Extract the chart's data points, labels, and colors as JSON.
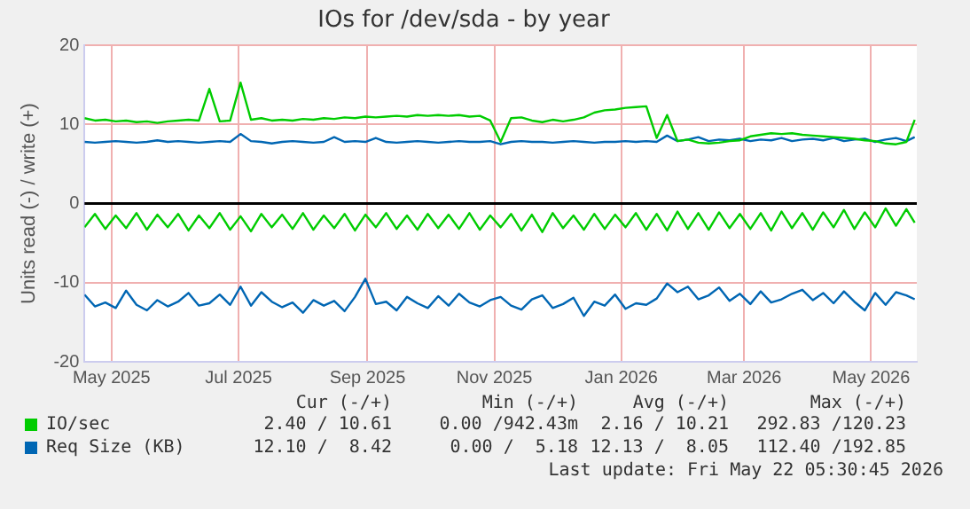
{
  "chart_data": {
    "type": "line",
    "title": "IOs for /dev/sda - by year",
    "ylabel": "Units read (-) / write (+)",
    "x": [
      "2025-04-18",
      "2025-04-23",
      "2025-04-28",
      "2025-05-03",
      "2025-05-08",
      "2025-05-13",
      "2025-05-18",
      "2025-05-23",
      "2025-05-28",
      "2025-06-02",
      "2025-06-07",
      "2025-06-12",
      "2025-06-17",
      "2025-06-22",
      "2025-06-27",
      "2025-07-02",
      "2025-07-07",
      "2025-07-12",
      "2025-07-17",
      "2025-07-22",
      "2025-07-27",
      "2025-08-01",
      "2025-08-06",
      "2025-08-11",
      "2025-08-16",
      "2025-08-21",
      "2025-08-26",
      "2025-08-31",
      "2025-09-05",
      "2025-09-10",
      "2025-09-15",
      "2025-09-20",
      "2025-09-25",
      "2025-09-30",
      "2025-10-05",
      "2025-10-10",
      "2025-10-15",
      "2025-10-20",
      "2025-10-25",
      "2025-10-30",
      "2025-11-04",
      "2025-11-09",
      "2025-11-14",
      "2025-11-19",
      "2025-11-24",
      "2025-11-29",
      "2025-12-04",
      "2025-12-09",
      "2025-12-14",
      "2025-12-19",
      "2025-12-24",
      "2025-12-29",
      "2026-01-03",
      "2026-01-08",
      "2026-01-13",
      "2026-01-18",
      "2026-01-23",
      "2026-01-28",
      "2026-02-02",
      "2026-02-07",
      "2026-02-12",
      "2026-02-17",
      "2026-02-22",
      "2026-02-27",
      "2026-03-04",
      "2026-03-09",
      "2026-03-14",
      "2026-03-19",
      "2026-03-24",
      "2026-03-29",
      "2026-04-03",
      "2026-04-08",
      "2026-04-13",
      "2026-04-18",
      "2026-04-23",
      "2026-04-28",
      "2026-05-03",
      "2026-05-08",
      "2026-05-13",
      "2026-05-18",
      "2026-05-22"
    ],
    "series": [
      {
        "name": "IO/sec",
        "color": "#00cc00",
        "values": [
          10.8,
          10.5,
          10.6,
          10.4,
          10.5,
          10.3,
          10.4,
          10.2,
          10.4,
          10.5,
          10.6,
          10.5,
          14.5,
          10.4,
          10.5,
          15.3,
          10.6,
          10.8,
          10.5,
          10.6,
          10.5,
          10.7,
          10.6,
          10.8,
          10.7,
          10.9,
          10.8,
          11,
          10.9,
          11,
          11.1,
          11,
          11.2,
          11.1,
          11.2,
          11.1,
          11.2,
          11,
          11.1,
          10.5,
          7.8,
          10.8,
          10.9,
          10.5,
          10.3,
          10.6,
          10.4,
          10.6,
          10.9,
          11.5,
          11.8,
          11.9,
          12.1,
          12.2,
          12.3,
          8.3,
          11.2,
          7.9,
          8.1,
          7.7,
          7.6,
          7.7,
          7.9,
          8,
          8.5,
          8.7,
          8.9,
          8.8,
          8.9,
          8.7,
          8.6,
          8.5,
          8.4,
          8.3,
          8.2,
          8,
          7.9,
          7.6,
          7.5,
          7.8,
          10.6
        ]
      },
      {
        "color": "#00cc00",
        "values": [
          -3,
          -1.3,
          -3.2,
          -1.5,
          -3.1,
          -1.2,
          -3.3,
          -1.4,
          -3,
          -1.3,
          -3.4,
          -1.5,
          -3.1,
          -1.2,
          -3.3,
          -1.6,
          -3.5,
          -1.3,
          -3,
          -1.4,
          -3.2,
          -1.2,
          -3.3,
          -1.5,
          -3.1,
          -1.3,
          -3.4,
          -1.4,
          -3,
          -1.2,
          -3.2,
          -1.5,
          -3.3,
          -1.3,
          -3.1,
          -1.4,
          -3.2,
          -1.2,
          -3.3,
          -1.5,
          -3,
          -1.3,
          -3.4,
          -1.4,
          -3.6,
          -1.2,
          -3.1,
          -1.5,
          -3.3,
          -1.3,
          -3.2,
          -1.4,
          -3,
          -1.2,
          -3.3,
          -1.3,
          -3.4,
          -1,
          -3.2,
          -1.2,
          -3.3,
          -1.1,
          -3.1,
          -1.3,
          -3.2,
          -1.2,
          -3.4,
          -1,
          -3.1,
          -1.2,
          -3.3,
          -1.1,
          -3,
          -0.8,
          -3.2,
          -1.1,
          -3,
          -0.6,
          -2.8,
          -0.7,
          -2.4
        ]
      },
      {
        "name": "Req Size (KB)",
        "color": "#0066b3",
        "values": [
          7.8,
          7.7,
          7.8,
          7.9,
          7.8,
          7.7,
          7.8,
          8,
          7.8,
          7.9,
          7.8,
          7.7,
          7.8,
          7.9,
          7.8,
          8.8,
          7.9,
          7.8,
          7.6,
          7.8,
          7.9,
          7.8,
          7.7,
          7.8,
          8.4,
          7.8,
          7.9,
          7.8,
          8.3,
          7.8,
          7.7,
          7.8,
          7.9,
          7.8,
          7.7,
          7.8,
          7.9,
          7.8,
          7.8,
          7.9,
          7.5,
          7.8,
          7.9,
          7.8,
          7.8,
          7.7,
          7.8,
          7.9,
          7.8,
          7.7,
          7.8,
          7.8,
          7.9,
          7.8,
          7.9,
          7.8,
          8.6,
          7.9,
          8.1,
          8.4,
          7.9,
          8.1,
          8,
          8.2,
          7.9,
          8.1,
          8,
          8.3,
          7.9,
          8.1,
          8.2,
          8,
          8.3,
          7.9,
          8.1,
          8.2,
          7.8,
          8.1,
          8.3,
          7.9,
          8.4
        ]
      },
      {
        "color": "#0066b3",
        "values": [
          -11.5,
          -13,
          -12.5,
          -13.2,
          -11,
          -12.8,
          -13.5,
          -12.2,
          -13,
          -12.4,
          -11.3,
          -12.9,
          -12.6,
          -11.5,
          -12.8,
          -10.5,
          -12.9,
          -11.2,
          -12.4,
          -13.1,
          -12.5,
          -13.8,
          -12.2,
          -12.9,
          -12.3,
          -13.6,
          -11.8,
          -9.5,
          -12.7,
          -12.4,
          -13.5,
          -11.8,
          -12.6,
          -13.2,
          -11.7,
          -12.9,
          -11.4,
          -12.5,
          -13,
          -12.2,
          -11.8,
          -12.9,
          -13.4,
          -12.1,
          -11.6,
          -13.2,
          -12.7,
          -11.9,
          -14.2,
          -12.4,
          -12.9,
          -11.5,
          -13.3,
          -12.6,
          -12.8,
          -12,
          -10.1,
          -11.2,
          -10.5,
          -12.1,
          -11.6,
          -10.6,
          -12.3,
          -11.4,
          -12.7,
          -11.1,
          -12.5,
          -12.1,
          -11.4,
          -10.9,
          -12.2,
          -11.3,
          -12.6,
          -11.1,
          -12.4,
          -13.5,
          -11.3,
          -12.8,
          -11.2,
          -11.6,
          -12.1
        ]
      }
    ],
    "xlim": [
      "2025-04-18",
      "2026-05-23"
    ],
    "xticks": [
      {
        "value": "2025-05-01",
        "label": "May 2025"
      },
      {
        "value": "2025-07-01",
        "label": "Jul 2025"
      },
      {
        "value": "2025-09-01",
        "label": "Sep 2025"
      },
      {
        "value": "2025-11-01",
        "label": "Nov 2025"
      },
      {
        "value": "2026-01-01",
        "label": "Jan 2026"
      },
      {
        "value": "2026-03-01",
        "label": "Mar 2026"
      },
      {
        "value": "2026-05-01",
        "label": "May 2026"
      }
    ],
    "ylim": [
      -20,
      20
    ],
    "yticks": [
      -20,
      -10,
      0,
      10,
      20
    ],
    "ref_lines": [
      {
        "axis": "y",
        "value": 0,
        "color": "#000000"
      }
    ],
    "grid": true,
    "legend": "bottom",
    "marker": "none",
    "line_style": "solid",
    "annotations": [
      "Cur (-/+)",
      "Min (-/+)",
      "Avg (-/+)",
      "Max (-/+)",
      "2.40 / 10.61",
      "0.00 /942.43m",
      "2.16 / 10.21",
      "292.83 /120.23",
      "12.10 /  8.42",
      "0.00 /  5.18",
      "12.13 /  8.05",
      "112.40 /192.85",
      "Last update: Fri May 22 05:30:45 2026"
    ]
  }
}
